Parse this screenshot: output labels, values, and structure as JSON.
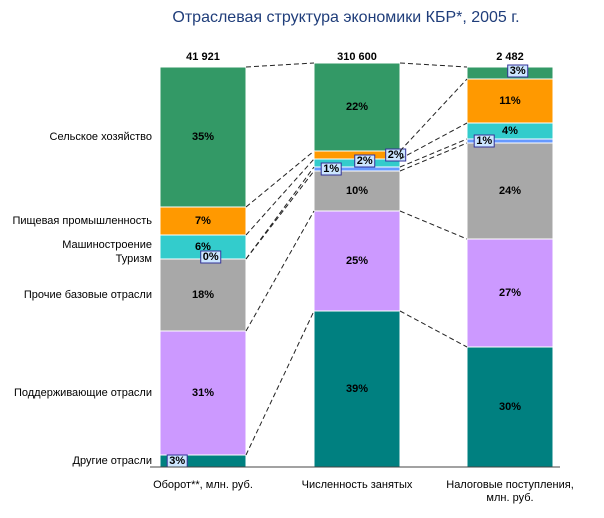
{
  "chart_data": {
    "type": "stacked_bar_100",
    "title": "Отраслевая структура экономики КБР*, 2005 г.",
    "categories": [
      "Оборот**, млн. руб.",
      "Численность занятых",
      "Налоговые поступления, млн. руб."
    ],
    "totals": {
      "values": [
        41921,
        310600,
        2482
      ],
      "value_labels": [
        "41 921",
        "310 600",
        "2 482"
      ]
    },
    "ylim": [
      0,
      100
    ],
    "series": [
      {
        "name": "Другие отрасли",
        "color": "#008080",
        "values": [
          3,
          39,
          30
        ],
        "value_labels": [
          "3%",
          "39%",
          "30%"
        ]
      },
      {
        "name": "Поддерживающие отрасли",
        "color": "#cc99ff",
        "values": [
          31,
          25,
          27
        ],
        "value_labels": [
          "31%",
          "25%",
          "27%"
        ]
      },
      {
        "name": "Прочие базовые отрасли",
        "color": "#a8a8a8",
        "values": [
          18,
          10,
          24
        ],
        "value_labels": [
          "18%",
          "10%",
          "24%"
        ]
      },
      {
        "name": "Туризм",
        "color": "#6699ff",
        "values": [
          0,
          1,
          1
        ],
        "value_labels": [
          "0%",
          "1%",
          "1%"
        ]
      },
      {
        "name": "Машиностроение",
        "color": "#33cccc",
        "values": [
          6,
          2,
          4
        ],
        "value_labels": [
          "6%",
          "2%",
          "4%"
        ]
      },
      {
        "name": "Пищевая промышленность",
        "color": "#ff9900",
        "values": [
          7,
          2,
          11
        ],
        "value_labels": [
          "7%",
          "2%",
          "11%"
        ]
      },
      {
        "name": "Сельское хозяйство",
        "color": "#339966",
        "values": [
          35,
          22,
          3
        ],
        "value_labels": [
          "35%",
          "22%",
          "3%"
        ]
      }
    ]
  }
}
